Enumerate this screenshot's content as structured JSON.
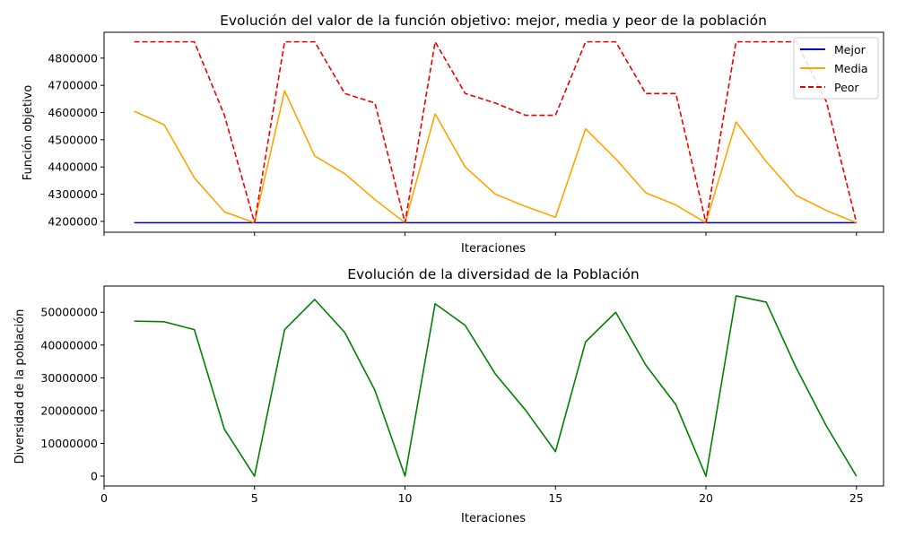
{
  "chart_data": [
    {
      "type": "line",
      "title": "Evolución del valor de la función objetivo: mejor, media y peor de la población",
      "xlabel": "Iteraciones",
      "ylabel": "Función objetivo",
      "xlim": [
        0,
        25.9
      ],
      "ylim": [
        4160000,
        4895000
      ],
      "xticks": [
        0,
        5,
        10,
        15,
        20,
        25
      ],
      "xtick_labels_visible": false,
      "yticks": [
        4200000,
        4300000,
        4400000,
        4500000,
        4600000,
        4700000,
        4800000
      ],
      "ytick_labels": [
        "4200000",
        "4300000",
        "4400000",
        "4500000",
        "4600000",
        "4700000",
        "4800000"
      ],
      "grid": false,
      "legend": "top-right",
      "x": [
        1,
        2,
        3,
        4,
        5,
        6,
        7,
        8,
        9,
        10,
        11,
        12,
        13,
        14,
        15,
        16,
        17,
        18,
        19,
        20,
        21,
        22,
        23,
        24,
        25
      ],
      "series": [
        {
          "name": "Mejor",
          "color": "#0000cc",
          "style": "solid",
          "values": [
            4195000,
            4195000,
            4195000,
            4195000,
            4195000,
            4195000,
            4195000,
            4195000,
            4195000,
            4195000,
            4195000,
            4195000,
            4195000,
            4195000,
            4195000,
            4195000,
            4195000,
            4195000,
            4195000,
            4195000,
            4195000,
            4195000,
            4195000,
            4195000,
            4195000
          ]
        },
        {
          "name": "Media",
          "color": "#ffa500",
          "style": "solid",
          "values": [
            4605000,
            4555000,
            4360000,
            4235000,
            4195000,
            4680000,
            4440000,
            4375000,
            4280000,
            4195000,
            4595000,
            4400000,
            4300000,
            4255000,
            4215000,
            4540000,
            4430000,
            4305000,
            4260000,
            4195000,
            4565000,
            4420000,
            4295000,
            4240000,
            4195000
          ]
        },
        {
          "name": "Peor",
          "color": "#ee0000",
          "style": "dashed",
          "values": [
            4860000,
            4860000,
            4860000,
            4590000,
            4195000,
            4860000,
            4860000,
            4670000,
            4635000,
            4195000,
            4860000,
            4670000,
            4635000,
            4590000,
            4590000,
            4860000,
            4860000,
            4670000,
            4670000,
            4195000,
            4860000,
            4860000,
            4860000,
            4640000,
            4195000
          ]
        }
      ]
    },
    {
      "type": "line",
      "title": "Evolución de la diversidad de la Población",
      "xlabel": "Iteraciones",
      "ylabel": "Diversidad de la población",
      "xlim": [
        0,
        25.9
      ],
      "ylim": [
        -3000000,
        58000000
      ],
      "xticks": [
        0,
        5,
        10,
        15,
        20,
        25
      ],
      "xtick_labels": [
        "0",
        "5",
        "10",
        "15",
        "20",
        "25"
      ],
      "yticks": [
        0,
        10000000,
        20000000,
        30000000,
        40000000,
        50000000
      ],
      "ytick_labels": [
        "0",
        "10000000",
        "20000000",
        "30000000",
        "40000000",
        "50000000"
      ],
      "grid": false,
      "x": [
        1,
        2,
        3,
        4,
        5,
        6,
        7,
        8,
        9,
        10,
        11,
        12,
        13,
        14,
        15,
        16,
        17,
        18,
        19,
        20,
        21,
        22,
        23,
        24,
        25
      ],
      "series": [
        {
          "color": "#008000",
          "style": "solid",
          "values": [
            47300000,
            47100000,
            44700000,
            14300000,
            0,
            44700000,
            53900000,
            43800000,
            26200000,
            0,
            52600000,
            46000000,
            31200000,
            20200000,
            7500000,
            41000000,
            50000000,
            33900000,
            21800000,
            0,
            55000000,
            53100000,
            33000000,
            15300000,
            0
          ]
        }
      ]
    }
  ]
}
